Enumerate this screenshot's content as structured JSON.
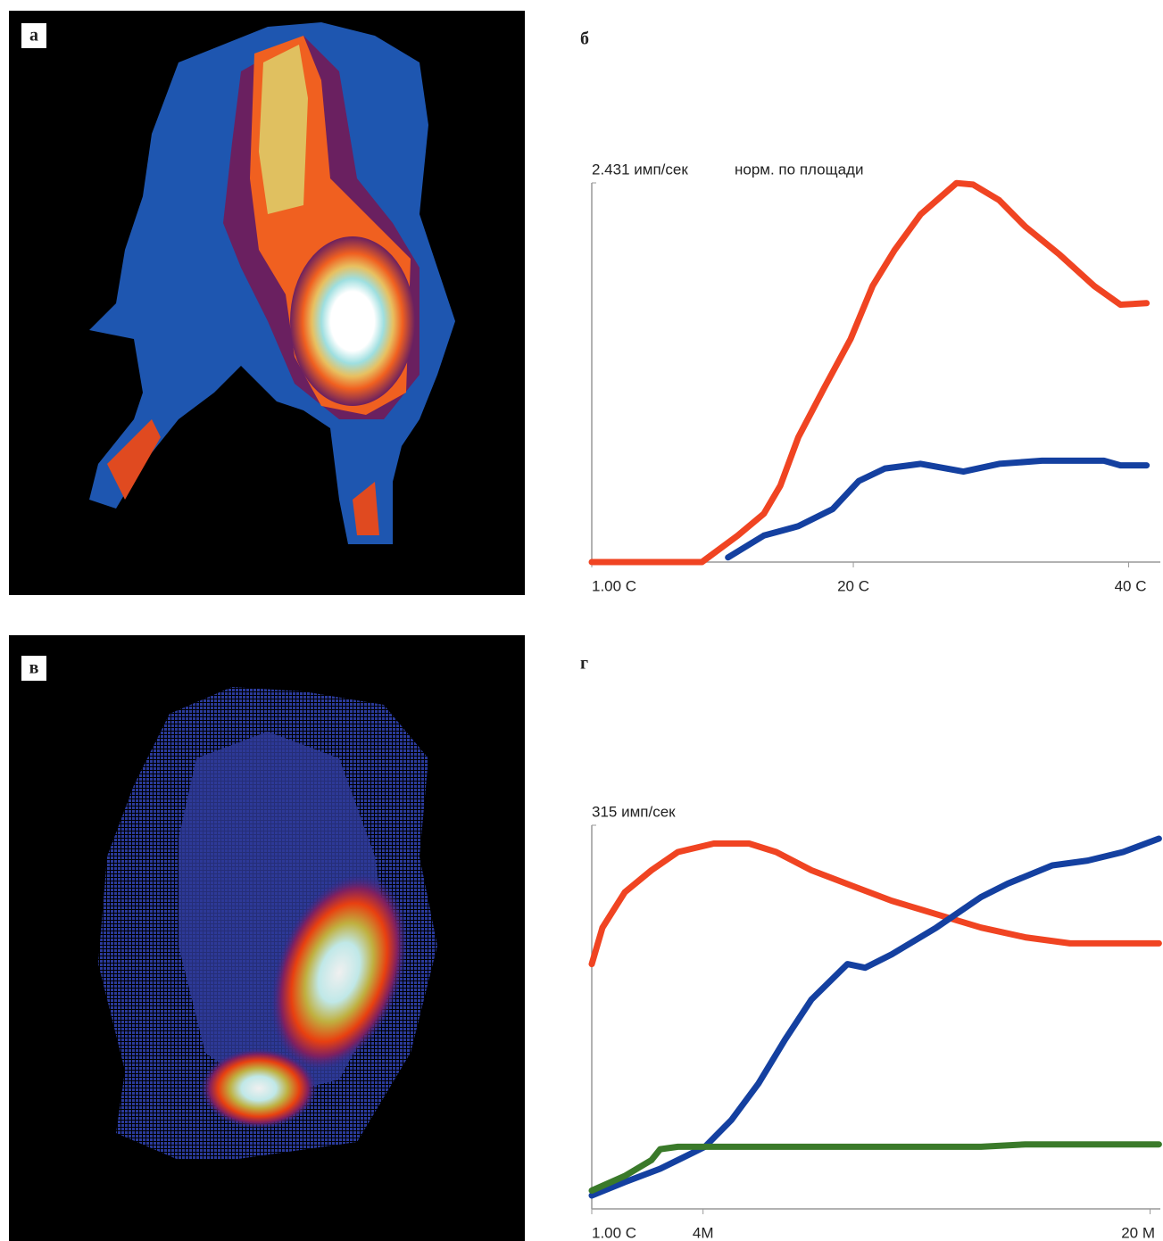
{
  "images": [
    {
      "label": "а"
    },
    {
      "label": "в"
    }
  ],
  "chart_data": [
    {
      "type": "line",
      "panel_label": "б",
      "subtitle": "норм. по площади",
      "xlim": [
        1,
        42.3
      ],
      "xticks": [
        {
          "value": 1,
          "label": "1.00 С"
        },
        {
          "value": 20,
          "label": "20 С"
        },
        {
          "value": 40,
          "label": "40 С"
        }
      ],
      "ylim": [
        0,
        2.431
      ],
      "yticks": [
        {
          "value": 2.431,
          "label": "2.431 имп/сек"
        }
      ],
      "series": [
        {
          "color": "#f04422",
          "x": [
            1,
            9.0,
            11.6,
            13.5,
            14.7,
            16.0,
            17.9,
            19.8,
            21.4,
            23.0,
            24.9,
            27.5,
            28.7,
            30.6,
            32.5,
            35.0,
            37.5,
            39.4,
            41.3
          ],
          "values": [
            0,
            0,
            0.17,
            0.31,
            0.49,
            0.8,
            1.12,
            1.43,
            1.77,
            2.0,
            2.23,
            2.43,
            2.42,
            2.32,
            2.15,
            1.97,
            1.77,
            1.65,
            1.66
          ]
        },
        {
          "color": "#1440a0",
          "x": [
            10.9,
            13.5,
            16.0,
            18.5,
            20.4,
            22.3,
            24.9,
            28.0,
            30.6,
            33.7,
            38.2,
            39.4,
            41.3
          ],
          "values": [
            0.03,
            0.17,
            0.23,
            0.34,
            0.52,
            0.6,
            0.63,
            0.58,
            0.63,
            0.65,
            0.65,
            0.62,
            0.62
          ]
        }
      ]
    },
    {
      "type": "line",
      "panel_label": "г",
      "xlim": [
        1,
        1222
      ],
      "xticks": [
        {
          "value": 1,
          "label": "1.00 С"
        },
        {
          "value": 240,
          "label": "4М"
        },
        {
          "value": 1200,
          "label": "20 М"
        }
      ],
      "ylim": [
        0,
        315
      ],
      "yticks": [
        {
          "value": 315,
          "label": "315 имп/сек"
        }
      ],
      "series": [
        {
          "color": "#f04422",
          "x": [
            1,
            24,
            72,
            129,
            186,
            263,
            339,
            397,
            473,
            569,
            645,
            741,
            837,
            932,
            1028,
            1123,
            1219
          ],
          "values": [
            201,
            231,
            260,
            278,
            293,
            300,
            300,
            293,
            278,
            264,
            253,
            242,
            231,
            223,
            218,
            218,
            218
          ]
        },
        {
          "color": "#1440a0",
          "x": [
            1,
            72,
            148,
            244,
            301,
            359,
            416,
            473,
            550,
            588,
            645,
            741,
            837,
            894,
            990,
            1066,
            1142,
            1219
          ],
          "values": [
            11,
            22,
            33,
            51,
            73,
            103,
            139,
            172,
            201,
            198,
            209,
            231,
            256,
            267,
            282,
            286,
            293,
            304
          ]
        },
        {
          "color": "#3a7a2a",
          "x": [
            1,
            72,
            129,
            148,
            186,
            263,
            837,
            932,
            1219
          ],
          "values": [
            15,
            27,
            40,
            49,
            51,
            51,
            51,
            53,
            53
          ]
        }
      ]
    }
  ]
}
